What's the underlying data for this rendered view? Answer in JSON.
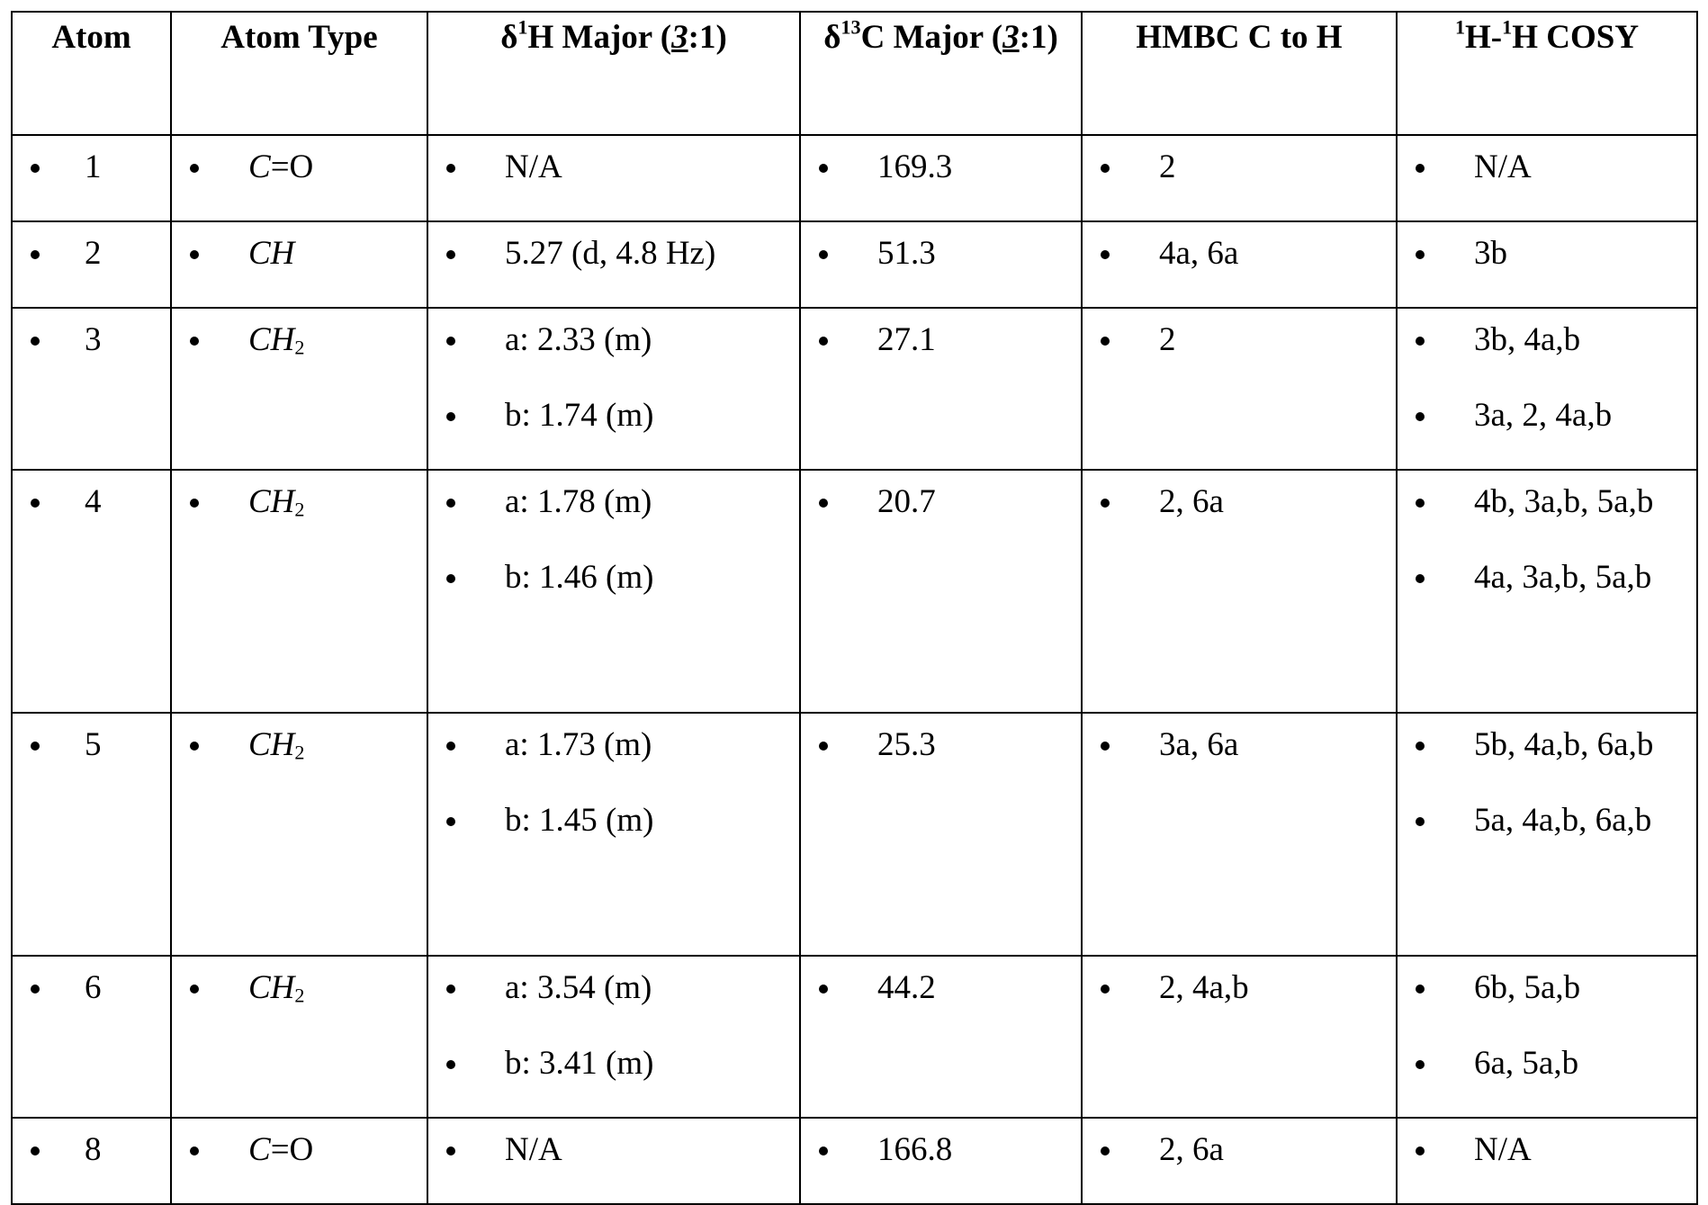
{
  "table": {
    "header": [
      [
        "Atom"
      ],
      [
        "Atom Type"
      ],
      [
        "δ",
        "1",
        "H Major (",
        "3",
        ":1)"
      ],
      [
        "δ",
        "13",
        "C Major (",
        "3",
        ":1)"
      ],
      [
        "HMBC C to H"
      ],
      [
        "1",
        "H-",
        "1",
        "H COSY"
      ]
    ],
    "rows": [
      [
        [
          "1"
        ],
        [
          {
            "italic": "C",
            "text": "=O"
          }
        ],
        [
          "N/A"
        ],
        [
          "169.3"
        ],
        [
          "2"
        ],
        [
          "N/A"
        ]
      ],
      [
        [
          "2"
        ],
        [
          {
            "italic": "CH"
          }
        ],
        [
          "5.27 (d, 4.8 Hz)"
        ],
        [
          "51.3"
        ],
        [
          "4a, 6a"
        ],
        [
          "3b"
        ]
      ],
      [
        [
          "3"
        ],
        [
          {
            "italic": "CH",
            "sub": "2"
          }
        ],
        [
          "a: 2.33 (m)",
          "b: 1.74 (m)"
        ],
        [
          "27.1"
        ],
        [
          "2"
        ],
        [
          "3b, 4a,b",
          "3a, 2, 4a,b"
        ]
      ],
      [
        [
          "4"
        ],
        [
          {
            "italic": "CH",
            "sub": "2"
          }
        ],
        [
          "a: 1.78 (m)",
          "b: 1.46 (m)"
        ],
        [
          "20.7"
        ],
        [
          "2, 6a"
        ],
        [
          "4b, 3a,b, 5a,b",
          "4a, 3a,b, 5a,b"
        ]
      ],
      [
        [
          "5"
        ],
        [
          {
            "italic": "CH",
            "sub": "2"
          }
        ],
        [
          "a: 1.73 (m)",
          "b: 1.45 (m)"
        ],
        [
          "25.3"
        ],
        [
          "3a, 6a"
        ],
        [
          "5b, 4a,b, 6a,b",
          "5a, 4a,b, 6a,b"
        ]
      ],
      [
        [
          "6"
        ],
        [
          {
            "italic": "CH",
            "sub": "2"
          }
        ],
        [
          "a: 3.54 (m)",
          "b: 3.41 (m)"
        ],
        [
          "44.2"
        ],
        [
          "2, 4a,b"
        ],
        [
          "6b, 5a,b",
          "6a, 5a,b"
        ]
      ],
      [
        [
          "8"
        ],
        [
          {
            "italic": "C",
            "text": "=O"
          }
        ],
        [
          "N/A"
        ],
        [
          "166.8"
        ],
        [
          "2, 6a"
        ],
        [
          "N/A"
        ]
      ]
    ]
  }
}
